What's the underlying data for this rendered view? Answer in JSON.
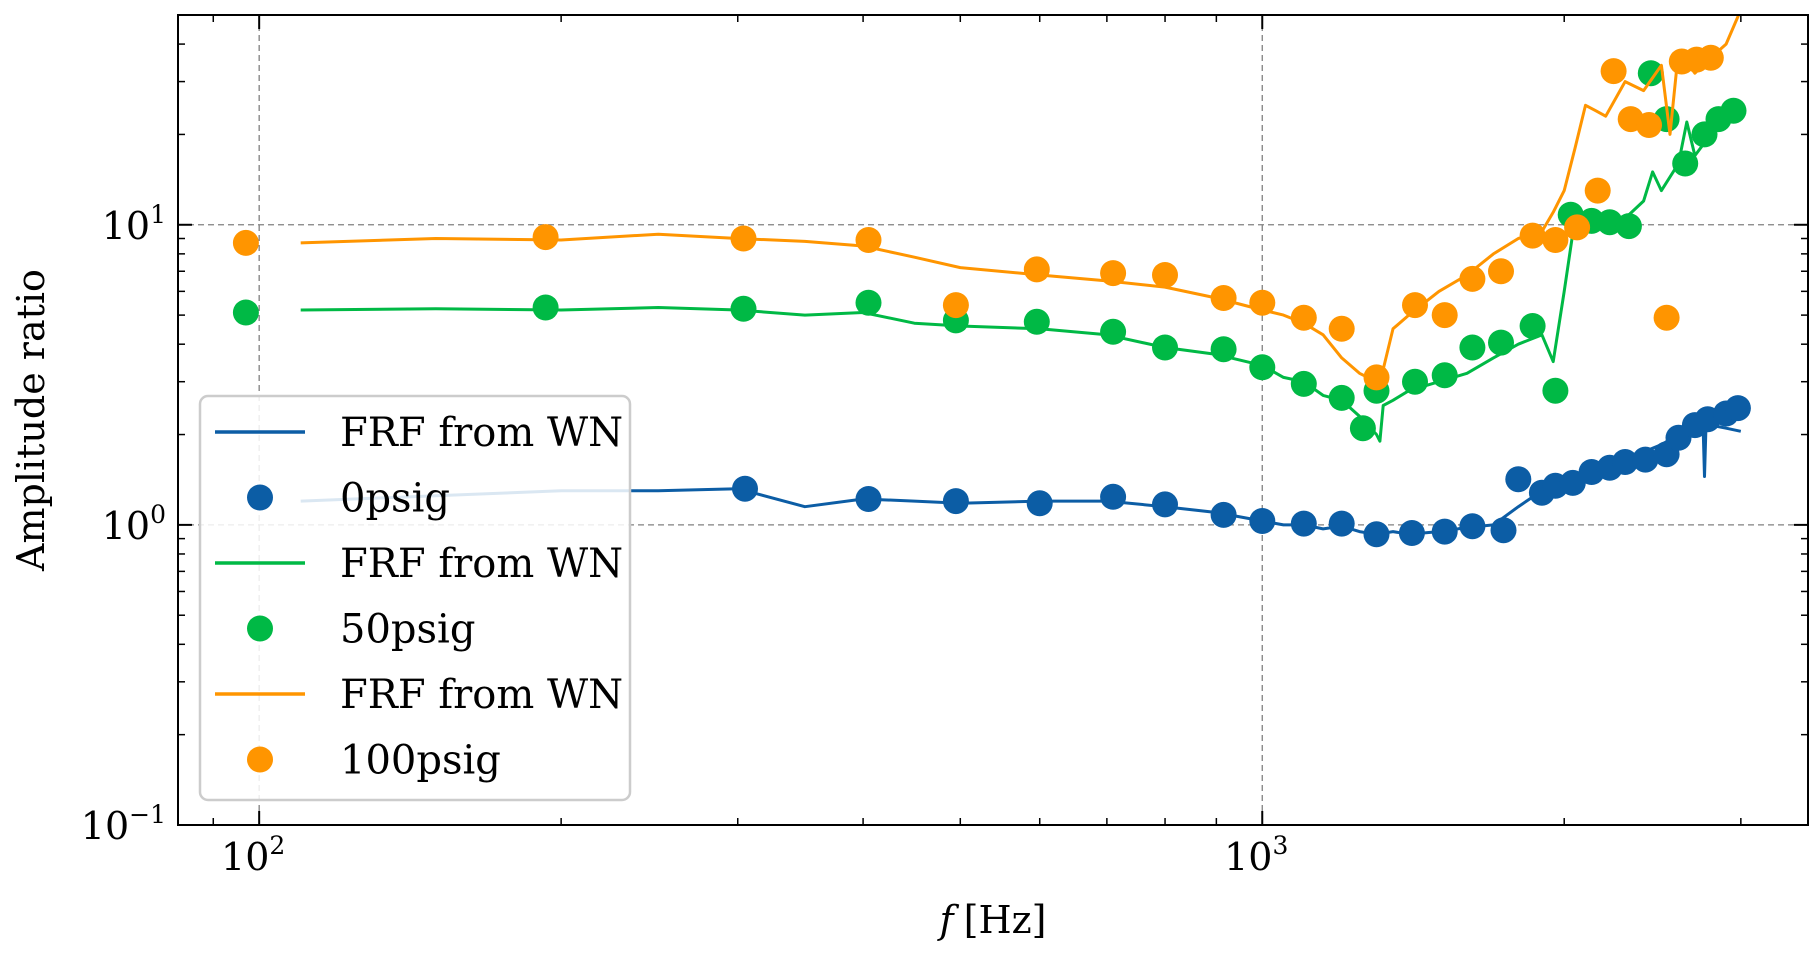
{
  "chart_data": {
    "type": "line",
    "xlabel": "f [Hz]",
    "xlabel_var": "f",
    "xlabel_unit": "[Hz]",
    "ylabel": "Amplitude ratio",
    "x_scale": "log",
    "y_scale": "log",
    "xlim": [
      83,
      3500
    ],
    "ylim": [
      0.1,
      50
    ],
    "x_ticks": [
      {
        "value": 100,
        "base": "10",
        "exp": "2"
      },
      {
        "value": 1000,
        "base": "10",
        "exp": "3"
      }
    ],
    "y_ticks": [
      {
        "value": 0.1,
        "base": "10",
        "exp": "−1"
      },
      {
        "value": 1,
        "base": "10",
        "exp": "0"
      },
      {
        "value": 10,
        "base": "10",
        "exp": "1"
      }
    ],
    "grid": true,
    "legend_position": "lower-left",
    "legend": [
      {
        "label": "FRF from WN",
        "kind": "line",
        "color": "#0C5DA5"
      },
      {
        "label": "0psig",
        "kind": "marker",
        "color": "#0C5DA5"
      },
      {
        "label": "FRF from WN",
        "kind": "line",
        "color": "#00B945"
      },
      {
        "label": "50psig",
        "kind": "marker",
        "color": "#00B945"
      },
      {
        "label": "FRF from WN",
        "kind": "line",
        "color": "#FF9500"
      },
      {
        "label": "100psig",
        "kind": "marker",
        "color": "#FF9500"
      }
    ],
    "series": [
      {
        "name": "FRF from WN",
        "kind": "line",
        "color": "#0C5DA5",
        "x": [
          110,
          150,
          200,
          250,
          300,
          350,
          400,
          450,
          500,
          600,
          700,
          800,
          900,
          1000,
          1050,
          1100,
          1150,
          1200,
          1250,
          1300,
          1350,
          1400,
          1500,
          1600,
          1700,
          1800,
          1900,
          2000,
          2100,
          2200,
          2300,
          2400,
          2500,
          2600,
          2700,
          2750,
          2760,
          2770,
          2800,
          2900,
          3000
        ],
        "y": [
          1.2,
          1.25,
          1.3,
          1.3,
          1.32,
          1.15,
          1.22,
          1.2,
          1.18,
          1.2,
          1.2,
          1.15,
          1.1,
          1.03,
          1.0,
          1.0,
          0.97,
          0.99,
          0.95,
          0.93,
          0.95,
          0.93,
          0.95,
          0.98,
          1.0,
          1.15,
          1.3,
          1.38,
          1.45,
          1.55,
          1.65,
          1.75,
          1.85,
          2.0,
          2.2,
          2.25,
          1.45,
          2.2,
          2.15,
          2.1,
          2.05
        ]
      },
      {
        "name": "0psig",
        "kind": "marker",
        "color": "#0C5DA5",
        "x": [
          305,
          405,
          495,
          600,
          710,
          800,
          915,
          1000,
          1100,
          1200,
          1300,
          1410,
          1520,
          1620,
          1740,
          1800,
          1900,
          1960,
          2040,
          2130,
          2220,
          2300,
          2410,
          2530,
          2600,
          2700,
          2780,
          2900,
          2980
        ],
        "y": [
          1.32,
          1.22,
          1.2,
          1.18,
          1.24,
          1.17,
          1.08,
          1.03,
          1.01,
          1.01,
          0.93,
          0.94,
          0.95,
          0.99,
          0.96,
          1.42,
          1.28,
          1.35,
          1.38,
          1.5,
          1.55,
          1.62,
          1.65,
          1.72,
          1.95,
          2.15,
          2.25,
          2.35,
          2.45
        ]
      },
      {
        "name": "FRF from WN",
        "kind": "line",
        "color": "#00B945",
        "x": [
          110,
          150,
          200,
          250,
          300,
          350,
          400,
          450,
          500,
          600,
          700,
          800,
          900,
          1000,
          1050,
          1100,
          1150,
          1200,
          1250,
          1300,
          1310,
          1320,
          1350,
          1400,
          1500,
          1600,
          1700,
          1800,
          1900,
          1950,
          2000,
          2050,
          2100,
          2150,
          2200,
          2300,
          2400,
          2450,
          2500,
          2600,
          2650,
          2700,
          2800,
          2900,
          3000
        ],
        "y": [
          5.2,
          5.25,
          5.2,
          5.3,
          5.2,
          5.0,
          5.1,
          4.7,
          4.6,
          4.5,
          4.3,
          3.9,
          3.7,
          3.4,
          3.1,
          3.0,
          2.7,
          2.6,
          2.3,
          2.0,
          1.9,
          2.5,
          2.6,
          2.8,
          3.0,
          3.2,
          3.6,
          4.0,
          4.3,
          3.5,
          6.0,
          10.5,
          10.0,
          11.0,
          10.0,
          10.5,
          12.0,
          15.0,
          13.0,
          16.0,
          22.0,
          17.0,
          20.0,
          22.0,
          24.0
        ]
      },
      {
        "name": "50psig",
        "kind": "marker",
        "color": "#00B945",
        "x": [
          97,
          193,
          304,
          405,
          495,
          596,
          710,
          800,
          915,
          1000,
          1100,
          1200,
          1260,
          1300,
          1420,
          1520,
          1620,
          1730,
          1860,
          1960,
          2030,
          2130,
          2220,
          2320,
          2440,
          2530,
          2640,
          2760,
          2850,
          2950
        ],
        "y": [
          5.1,
          5.3,
          5.25,
          5.5,
          4.8,
          4.75,
          4.4,
          3.9,
          3.85,
          3.35,
          2.95,
          2.65,
          2.1,
          2.8,
          3.0,
          3.15,
          3.9,
          4.05,
          4.6,
          2.8,
          10.8,
          10.3,
          10.2,
          9.9,
          32.0,
          22.5,
          16.0,
          20.0,
          22.5,
          24.0
        ]
      },
      {
        "name": "FRF from WN",
        "kind": "line",
        "color": "#FF9500",
        "x": [
          110,
          150,
          200,
          250,
          300,
          350,
          400,
          450,
          500,
          600,
          700,
          800,
          900,
          1000,
          1050,
          1100,
          1150,
          1200,
          1250,
          1300,
          1320,
          1350,
          1400,
          1500,
          1600,
          1700,
          1800,
          1900,
          1950,
          2000,
          2050,
          2100,
          2150,
          2200,
          2300,
          2400,
          2500,
          2550,
          2600,
          2700,
          2800,
          2900,
          3000
        ],
        "y": [
          8.7,
          9.0,
          8.9,
          9.3,
          9.0,
          8.8,
          8.5,
          7.8,
          7.2,
          6.8,
          6.5,
          6.2,
          5.7,
          5.2,
          5.0,
          4.7,
          4.3,
          3.6,
          3.2,
          3.0,
          3.3,
          4.5,
          5.0,
          6.0,
          6.8,
          8.0,
          9.0,
          9.5,
          11.0,
          13.0,
          18.0,
          25.0,
          24.0,
          23.0,
          30.0,
          28.0,
          34.0,
          20.0,
          38.0,
          32.0,
          36.0,
          40.0,
          52.0
        ]
      },
      {
        "name": "100psig",
        "kind": "marker",
        "color": "#FF9500",
        "x": [
          97,
          193,
          304,
          405,
          495,
          596,
          710,
          800,
          915,
          1000,
          1100,
          1200,
          1300,
          1420,
          1520,
          1620,
          1730,
          1860,
          1960,
          2060,
          2160,
          2240,
          2330,
          2430,
          2530,
          2620,
          2710,
          2800
        ],
        "y": [
          8.7,
          9.1,
          9.0,
          8.9,
          5.4,
          7.1,
          6.9,
          6.8,
          5.7,
          5.5,
          4.9,
          4.5,
          3.1,
          5.4,
          5.0,
          6.6,
          7.0,
          9.2,
          8.9,
          9.8,
          13.0,
          32.5,
          22.5,
          21.5,
          4.9,
          35.0,
          35.5,
          36.0
        ]
      }
    ]
  }
}
